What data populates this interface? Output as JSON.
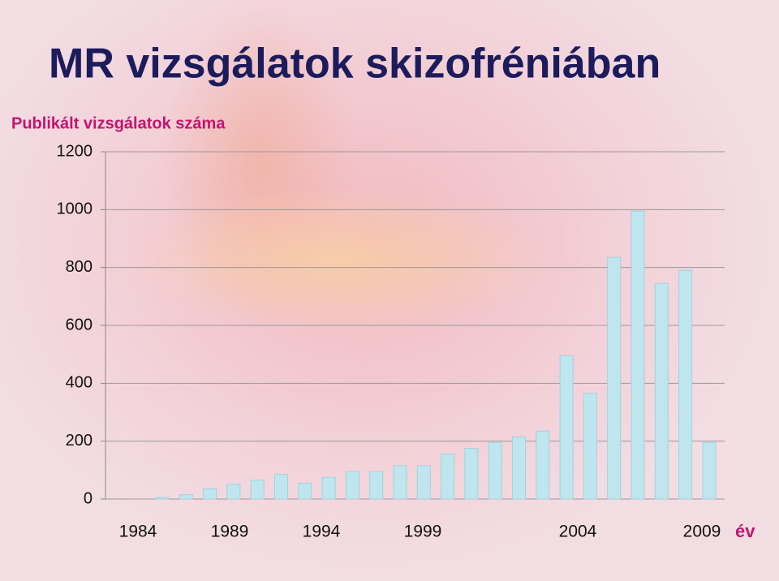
{
  "chart_data": {
    "type": "bar",
    "title": "MR vizsgálatok skizofréniában",
    "y_axis_label": "Publikált vizsgálatok száma",
    "x_axis_label": "év",
    "x_labels": [
      "1984",
      "1989",
      "1994",
      "1999",
      "2004",
      "2009"
    ],
    "values": [
      5,
      15,
      35,
      50,
      65,
      85,
      55,
      75,
      95,
      95,
      115,
      115,
      155,
      175,
      195,
      215,
      235,
      495,
      365,
      835,
      995,
      745,
      790,
      195
    ],
    "color": "#bfe6ee",
    "ylim": [
      0,
      1200
    ],
    "yticks": [
      0,
      200,
      400,
      600,
      800,
      1000,
      1200
    ],
    "grid": true
  }
}
